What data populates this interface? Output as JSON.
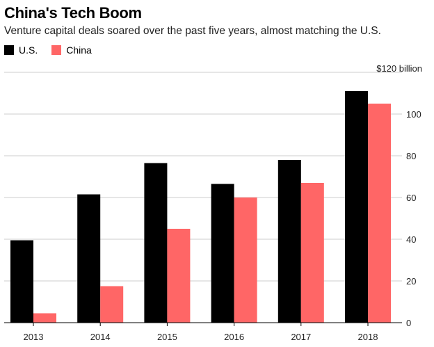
{
  "chart_data": {
    "type": "bar",
    "title": "China's Tech Boom",
    "subtitle": "Venture capital deals soared over the past five years, almost matching the U.S.",
    "categories": [
      "2013",
      "2014",
      "2015",
      "2016",
      "2017",
      "2018"
    ],
    "series": [
      {
        "name": "U.S.",
        "color": "#000000",
        "values": [
          39.5,
          61.5,
          76.5,
          66.5,
          78,
          111
        ]
      },
      {
        "name": "China",
        "color": "#ff6666",
        "values": [
          4.5,
          17.5,
          45,
          60,
          67,
          105
        ]
      }
    ],
    "yticks": [
      0,
      20,
      40,
      60,
      80,
      100,
      120
    ],
    "ytick_labels": [
      "0",
      "20",
      "40",
      "60",
      "80",
      "100",
      "$120 billion"
    ],
    "ylim": [
      0,
      120
    ],
    "grid": true,
    "legend_position": "top-left",
    "yaxis_position": "right"
  }
}
